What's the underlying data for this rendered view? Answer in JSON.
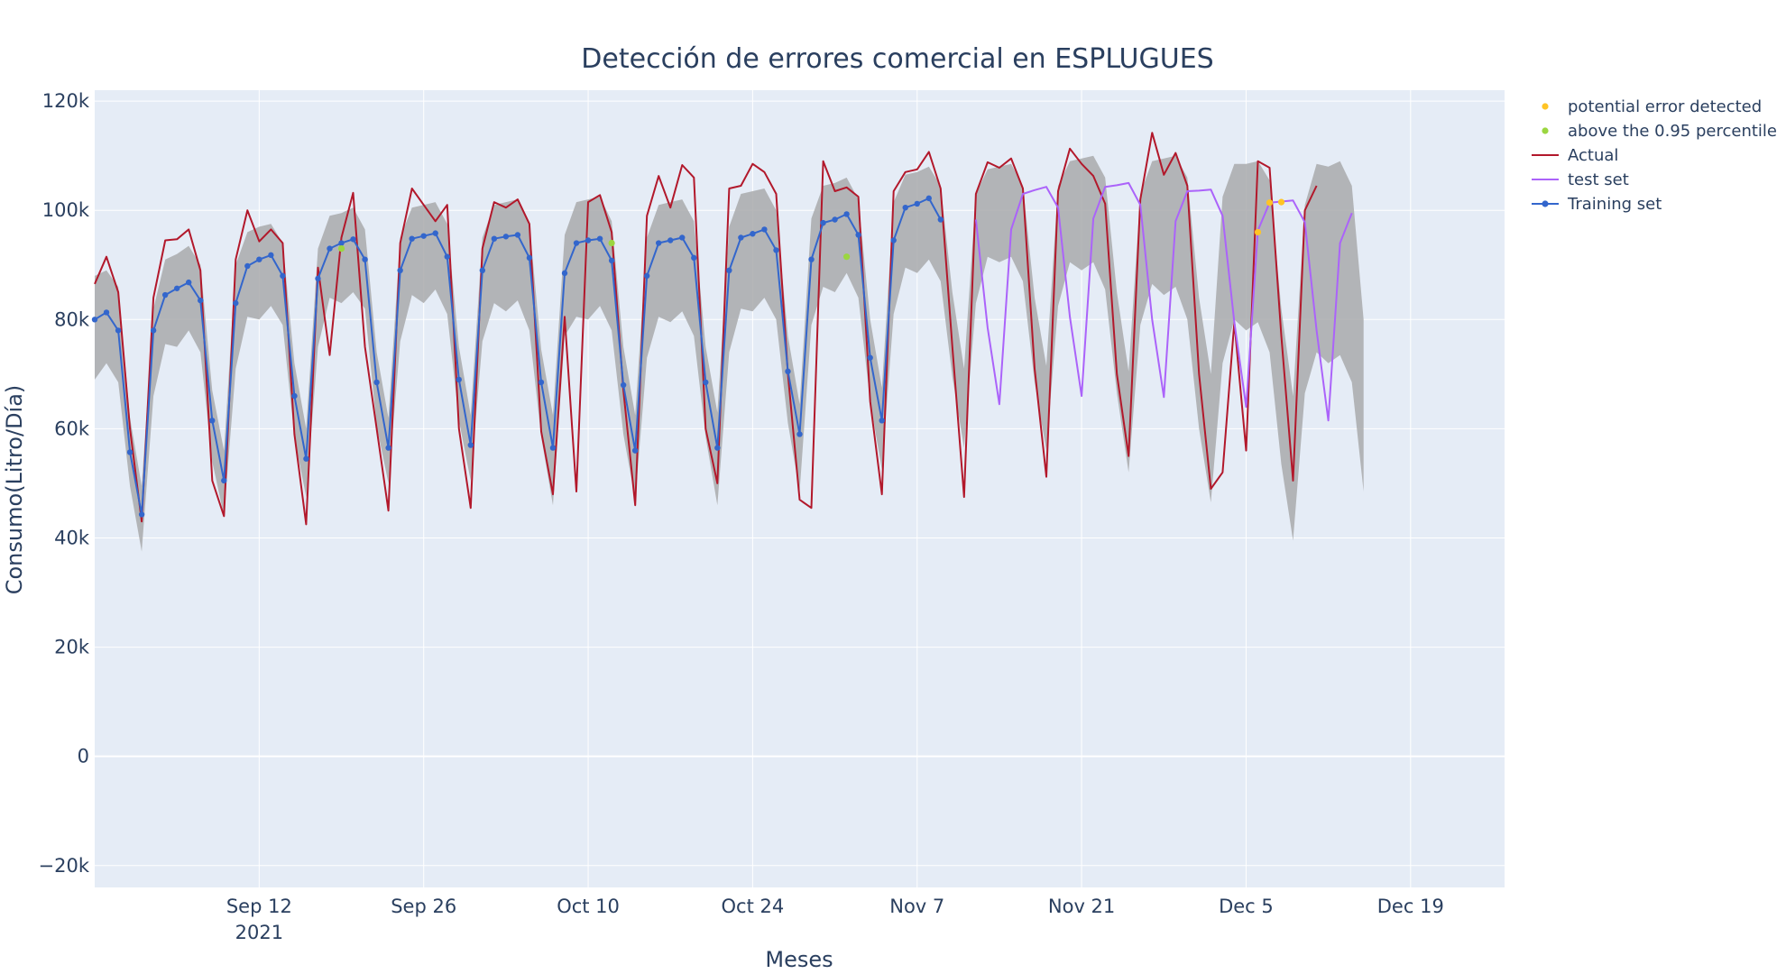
{
  "chart_data": {
    "type": "line",
    "title": "Detección de errores comercial en ESPLUGUES",
    "xlabel": "Meses",
    "ylabel": "Consumo(Litro/Día)",
    "xlim": [
      "2021-08-29",
      "2021-12-27"
    ],
    "ylim": [
      -24000,
      122000
    ],
    "background_color": "#e5ecf6",
    "grid": true,
    "legend_position": "top-right (outside plot)",
    "x_ticks": [
      {
        "date": "2021-09-12",
        "label": "Sep 12",
        "sublabel": "2021"
      },
      {
        "date": "2021-09-26",
        "label": "Sep 26"
      },
      {
        "date": "2021-10-10",
        "label": "Oct 10"
      },
      {
        "date": "2021-10-24",
        "label": "Oct 24"
      },
      {
        "date": "2021-11-07",
        "label": "Nov 7"
      },
      {
        "date": "2021-11-21",
        "label": "Nov 21"
      },
      {
        "date": "2021-12-05",
        "label": "Dec 5"
      },
      {
        "date": "2021-12-19",
        "label": "Dec 19"
      }
    ],
    "y_ticks": [
      {
        "value": -20000,
        "label": "−20k"
      },
      {
        "value": 0,
        "label": "0"
      },
      {
        "value": 20000,
        "label": "20k"
      },
      {
        "value": 40000,
        "label": "40k"
      },
      {
        "value": 60000,
        "label": "60k"
      },
      {
        "value": 80000,
        "label": "80k"
      },
      {
        "value": 100000,
        "label": "100k"
      },
      {
        "value": 120000,
        "label": "120k"
      }
    ],
    "series": [
      {
        "name": "Actual",
        "kind": "line",
        "color": "#b2182b",
        "start_date": "2021-08-29",
        "values": [
          86500,
          91500,
          85000,
          60000,
          43000,
          84000,
          94500,
          94700,
          96500,
          89000,
          50500,
          44000,
          91000,
          100000,
          94300,
          96500,
          94000,
          59000,
          42500,
          89500,
          73500,
          95000,
          103200,
          75000,
          60000,
          45000,
          94000,
          104000,
          101000,
          98000,
          101000,
          60000,
          45500,
          93000,
          101500,
          100500,
          102000,
          97500,
          59500,
          48000,
          80500,
          48500,
          101500,
          102800,
          96000,
          67000,
          46000,
          99000,
          106300,
          100500,
          108300,
          106000,
          60000,
          50000,
          104000,
          104500,
          108500,
          107000,
          103000,
          70000,
          47000,
          45500,
          109000,
          103500,
          104200,
          102500,
          65000,
          48000,
          103500,
          107000,
          107500,
          110700,
          104000,
          75000,
          47500,
          103000,
          108800,
          107800,
          109500,
          104000,
          71000,
          51200,
          103500,
          111300,
          108500,
          106300,
          101200,
          70000,
          55000,
          102000,
          114200,
          106500,
          110500,
          104500,
          70000,
          49000,
          52000,
          79500,
          56000,
          109000,
          107800,
          77000,
          50500,
          100000,
          104500
        ]
      },
      {
        "name": "Training set",
        "kind": "line+markers",
        "color": "#3366cc",
        "start_date": "2021-08-29",
        "values": [
          80000,
          81300,
          78000,
          55700,
          44300,
          78000,
          84500,
          85700,
          86800,
          83500,
          61500,
          50500,
          83000,
          89800,
          91000,
          91800,
          88000,
          66000,
          54500,
          87500,
          93000,
          94000,
          94700,
          91000,
          68500,
          56500,
          89000,
          94800,
          95300,
          95800,
          91500,
          69000,
          57000,
          89000,
          94800,
          95200,
          95500,
          91300,
          68500,
          56500,
          88500,
          94000,
          94500,
          94800,
          90800,
          68000,
          56000,
          88000,
          94000,
          94500,
          95000,
          91300,
          68500,
          56500,
          89000,
          95000,
          95700,
          96500,
          92700,
          70500,
          59000,
          91000,
          97700,
          98300,
          99300,
          95500,
          73000,
          61500,
          94500,
          100500,
          101200,
          102200,
          98300
        ]
      },
      {
        "name": "test set",
        "kind": "line",
        "color": "#ab63fa",
        "start_date": "2021-11-12",
        "values": [
          98300,
          78500,
          64500,
          96500,
          103000,
          103700,
          104300,
          100500,
          80500,
          66000,
          98500,
          104300,
          104600,
          105000,
          101000,
          80000,
          65800,
          98000,
          103500,
          103600,
          103800,
          99000,
          79500,
          64000,
          96300,
          101400,
          101600,
          101800,
          97800,
          78000,
          61500,
          94000,
          99500
        ]
      },
      {
        "name": "upper bound",
        "kind": "band",
        "color": "#a9aaab",
        "start_date": "2021-08-29",
        "values": [
          88000,
          89000,
          86000,
          62000,
          49500,
          82000,
          91000,
          92000,
          93500,
          90000,
          67000,
          56000,
          90000,
          96000,
          97000,
          97500,
          94000,
          72000,
          60000,
          93000,
          99000,
          99500,
          100500,
          96500,
          74000,
          62000,
          95000,
          100500,
          101000,
          101500,
          97500,
          75000,
          62500,
          95000,
          101000,
          101500,
          102000,
          97500,
          74500,
          62500,
          95500,
          101500,
          102000,
          102500,
          98000,
          75000,
          62500,
          95000,
          101000,
          101500,
          102000,
          98000,
          75000,
          63000,
          97000,
          103000,
          103500,
          104000,
          100000,
          77000,
          64500,
          98500,
          104500,
          105000,
          106000,
          102000,
          80000,
          67500,
          101500,
          106500,
          107000,
          108000,
          104500,
          85000,
          71000,
          103000,
          107500,
          108000,
          108500,
          104500,
          84000,
          71500,
          104500,
          109000,
          109500,
          110000,
          106000,
          85000,
          70500,
          103000,
          109000,
          109500,
          110000,
          106000,
          84000,
          70000,
          102500,
          108500,
          108500,
          109000,
          105500,
          82000,
          66000,
          101000,
          108500,
          108000,
          109000,
          104500,
          80000
        ]
      },
      {
        "name": "lower bound",
        "kind": "band",
        "color": "#a9aaab",
        "start_date": "2021-08-29",
        "values": [
          69000,
          72000,
          68500,
          49500,
          37500,
          66000,
          75500,
          75000,
          78000,
          74000,
          54000,
          44000,
          71000,
          80500,
          80000,
          82500,
          79000,
          58500,
          47500,
          75000,
          84000,
          83000,
          85000,
          82000,
          60500,
          50000,
          76000,
          84500,
          83000,
          85500,
          81000,
          61500,
          50500,
          76000,
          83000,
          81500,
          83500,
          78000,
          58500,
          46000,
          77000,
          80500,
          80000,
          82500,
          78000,
          59000,
          47000,
          73000,
          80500,
          79500,
          81500,
          77000,
          58500,
          46000,
          74000,
          82000,
          81500,
          84000,
          80000,
          61000,
          48500,
          79000,
          86000,
          85000,
          88500,
          84000,
          65000,
          52500,
          81000,
          89500,
          88500,
          91000,
          87000,
          69500,
          56500,
          83000,
          91500,
          90500,
          91500,
          87000,
          68500,
          56000,
          82500,
          90500,
          89000,
          90500,
          85500,
          66500,
          52000,
          79000,
          86500,
          84500,
          86000,
          80000,
          60000,
          46500,
          72000,
          80000,
          78000,
          79500,
          74000,
          53500,
          39500,
          66500,
          74000,
          72000,
          73500,
          68500,
          48500
        ]
      },
      {
        "name": "above the 0.95 percentile",
        "kind": "markers",
        "color": "#9bd640",
        "points": [
          {
            "date": "2021-09-19",
            "y": 93000
          },
          {
            "date": "2021-10-12",
            "y": 94000
          },
          {
            "date": "2021-11-01",
            "y": 91500
          }
        ]
      },
      {
        "name": "potential error detected",
        "kind": "markers",
        "color": "#ffc425",
        "points": [
          {
            "date": "2021-12-06",
            "y": 96000
          },
          {
            "date": "2021-12-07",
            "y": 101400
          },
          {
            "date": "2021-12-08",
            "y": 101500
          }
        ]
      }
    ],
    "legend": [
      {
        "label": "potential error detected",
        "symbol": "marker",
        "color": "#ffc425"
      },
      {
        "label": "above the 0.95 percentile",
        "symbol": "marker",
        "color": "#9bd640"
      },
      {
        "label": "Actual",
        "symbol": "line",
        "color": "#b2182b"
      },
      {
        "label": "test set",
        "symbol": "line",
        "color": "#ab63fa"
      },
      {
        "label": "Training set",
        "symbol": "line+marker",
        "color": "#3366cc"
      }
    ]
  }
}
